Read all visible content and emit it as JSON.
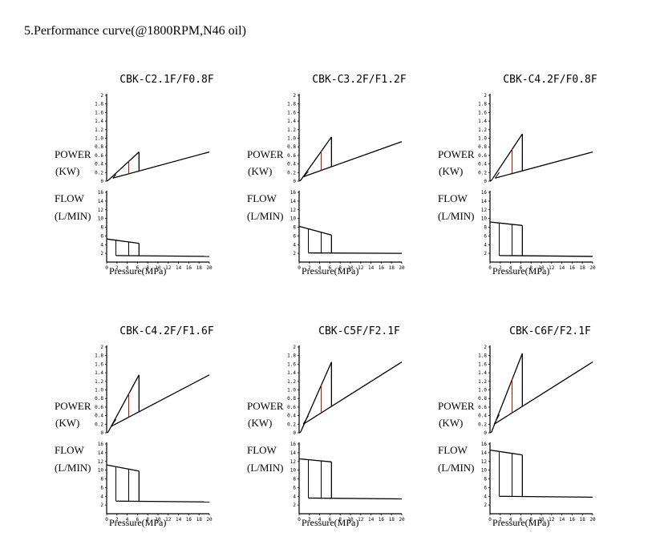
{
  "heading": "5.Performance curve(@1800RPM,N46 oil)",
  "labels": {
    "power": "POWER",
    "power_unit": "(KW)",
    "flow": "FLOW",
    "flow_unit": "(L/MIN)",
    "pressure": "Pressure(MPa)"
  },
  "axes": {
    "power_ticks": [
      "0",
      "0.2",
      "0.4",
      "0.6",
      "0.8",
      "1.0",
      "1.2",
      "1.4",
      "1.6",
      "1.8",
      "2"
    ],
    "flow_ticks": [
      "2",
      "4",
      "6",
      "8",
      "10",
      "12",
      "14",
      "16"
    ],
    "pressure_ticks": [
      "0",
      "2",
      "4",
      "6",
      "8",
      "10",
      "12",
      "14",
      "16",
      "18",
      "20"
    ]
  },
  "chart_data": [
    {
      "type": "line",
      "title": "CBK-C2.1F/F0.8F",
      "xlabel": "Pressure(MPa)",
      "xlim": [
        0,
        20
      ],
      "power_ylim": [
        0,
        2
      ],
      "flow_ylim": [
        0,
        16
      ],
      "power": {
        "peak_x": 6.3,
        "peak_y": 0.68,
        "base_x": 1.2,
        "base_y": 0.07,
        "end_x": 20,
        "end_y": 0.68
      },
      "flow": {
        "start_y": 5.3,
        "drop_x": 6.3,
        "drop_y": 4.3,
        "low_y": 1.5,
        "end_y": 1.3,
        "verticals": [
          1.8,
          4.3
        ]
      }
    },
    {
      "type": "line",
      "title": "CBK-C3.2F/F1.2F",
      "xlabel": "Pressure(MPa)",
      "xlim": [
        0,
        20
      ],
      "power_ylim": [
        0,
        2
      ],
      "flow_ylim": [
        0,
        16
      ],
      "power": {
        "peak_x": 6.3,
        "peak_y": 1.03,
        "base_x": 0.8,
        "base_y": 0.1,
        "end_x": 20,
        "end_y": 0.92
      },
      "flow": {
        "start_y": 8.2,
        "drop_x": 6.3,
        "drop_y": 6.2,
        "low_y": 2.1,
        "end_y": 2.0,
        "verticals": [
          1.8,
          4.3
        ]
      }
    },
    {
      "type": "line",
      "title": "CBK-C4.2F/F0.8F",
      "xlabel": "Pressure(MPa)",
      "xlim": [
        0,
        20
      ],
      "power_ylim": [
        0,
        2
      ],
      "flow_ylim": [
        0,
        16
      ],
      "power": {
        "peak_x": 6.3,
        "peak_y": 1.1,
        "base_x": 1.0,
        "base_y": 0.07,
        "end_x": 20,
        "end_y": 0.68
      },
      "flow": {
        "start_y": 9.2,
        "drop_x": 6.3,
        "drop_y": 8.4,
        "low_y": 1.5,
        "end_y": 1.3,
        "verticals": [
          1.8,
          4.3
        ]
      }
    },
    {
      "type": "line",
      "title": "CBK-C4.2F/F1.6F",
      "xlabel": "Pressure(MPa)",
      "xlim": [
        0,
        20
      ],
      "power_ylim": [
        0,
        2
      ],
      "flow_ylim": [
        0,
        16
      ],
      "power": {
        "peak_x": 6.3,
        "peak_y": 1.35,
        "base_x": 0.9,
        "base_y": 0.15,
        "end_x": 20,
        "end_y": 1.35
      },
      "flow": {
        "start_y": 11.2,
        "drop_x": 6.3,
        "drop_y": 9.8,
        "low_y": 2.9,
        "end_y": 2.7,
        "verticals": [
          1.8,
          4.3
        ]
      }
    },
    {
      "type": "line",
      "title": "CBK-C5F/F2.1F",
      "xlabel": "Pressure(MPa)",
      "xlim": [
        0,
        20
      ],
      "power_ylim": [
        0,
        2
      ],
      "flow_ylim": [
        0,
        16
      ],
      "power": {
        "peak_x": 6.3,
        "peak_y": 1.65,
        "base_x": 0.8,
        "base_y": 0.2,
        "end_x": 20,
        "end_y": 1.65
      },
      "flow": {
        "start_y": 12.6,
        "drop_x": 6.3,
        "drop_y": 11.9,
        "low_y": 3.6,
        "end_y": 3.4,
        "verticals": [
          1.8,
          4.3
        ]
      }
    },
    {
      "type": "line",
      "title": "CBK-C6F/F2.1F",
      "xlabel": "Pressure(MPa)",
      "xlim": [
        0,
        20
      ],
      "power_ylim": [
        0,
        2
      ],
      "flow_ylim": [
        0,
        16
      ],
      "power": {
        "peak_x": 6.3,
        "peak_y": 1.85,
        "base_x": 0.8,
        "base_y": 0.2,
        "end_x": 20,
        "end_y": 1.65
      },
      "flow": {
        "start_y": 14.6,
        "drop_x": 6.3,
        "drop_y": 13.5,
        "low_y": 4.0,
        "end_y": 3.8,
        "verticals": [
          1.8,
          4.3
        ]
      }
    }
  ]
}
